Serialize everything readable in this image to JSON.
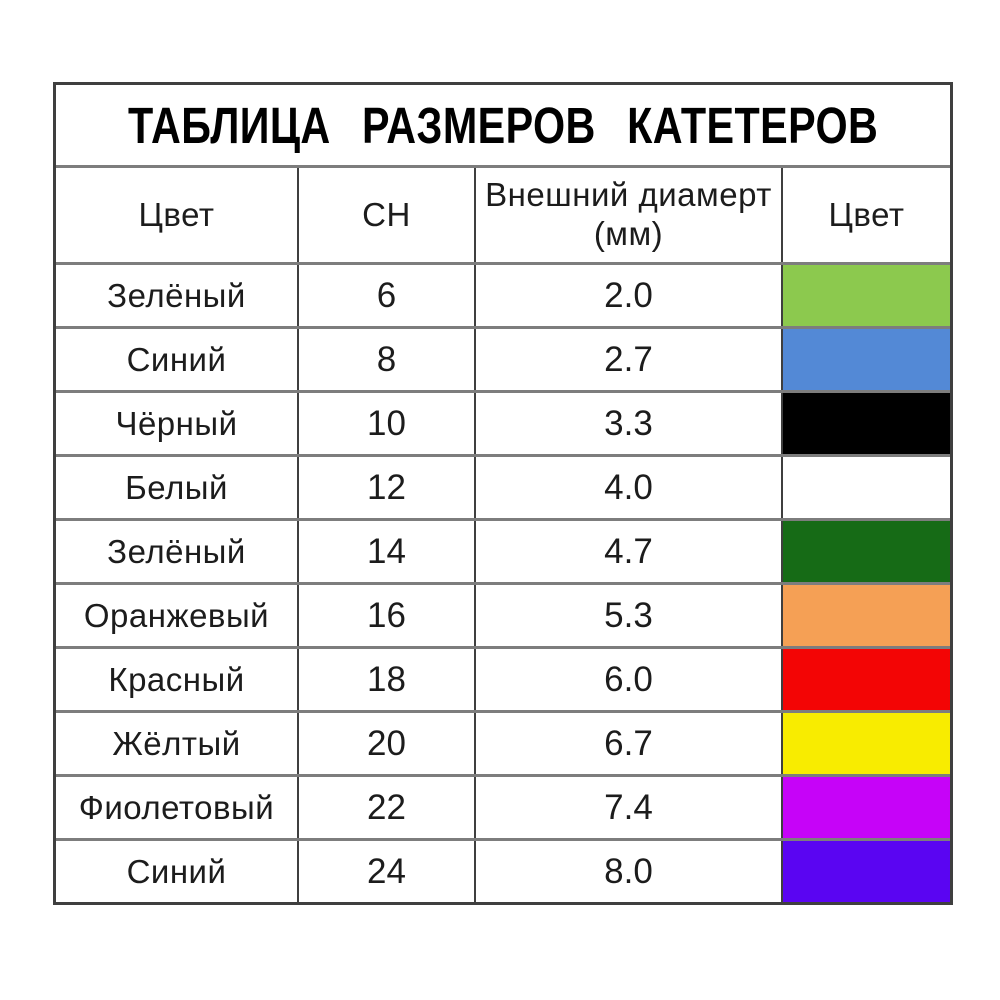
{
  "title": "ТАБЛИЦА РАЗМЕРОВ КАТЕТЕРОВ",
  "chart_data": {
    "type": "table",
    "title": "ТАБЛИЦА РАЗМЕРОВ КАТЕТЕРОВ",
    "columns": [
      "Цвет",
      "CH",
      "Внешний диамерт (мм)",
      "Цвет"
    ],
    "rows": [
      {
        "color_name": "Зелёный",
        "ch": "6",
        "outer_diameter_mm": "2.0",
        "swatch_name": "light-green-swatch",
        "swatch_hex": "#8CC94E"
      },
      {
        "color_name": "Синий",
        "ch": "8",
        "outer_diameter_mm": "2.7",
        "swatch_name": "blue-swatch",
        "swatch_hex": "#5389D6"
      },
      {
        "color_name": "Чёрный",
        "ch": "10",
        "outer_diameter_mm": "3.3",
        "swatch_name": "black-swatch",
        "swatch_hex": "#000000"
      },
      {
        "color_name": "Белый",
        "ch": "12",
        "outer_diameter_mm": "4.0",
        "swatch_name": "white-swatch",
        "swatch_hex": "#FFFFFF"
      },
      {
        "color_name": "Зелёный",
        "ch": "14",
        "outer_diameter_mm": "4.7",
        "swatch_name": "dark-green-swatch",
        "swatch_hex": "#166B16"
      },
      {
        "color_name": "Оранжевый",
        "ch": "16",
        "outer_diameter_mm": "5.3",
        "swatch_name": "orange-swatch",
        "swatch_hex": "#F5A055"
      },
      {
        "color_name": "Красный",
        "ch": "18",
        "outer_diameter_mm": "6.0",
        "swatch_name": "red-swatch",
        "swatch_hex": "#F30505"
      },
      {
        "color_name": "Жёлтый",
        "ch": "20",
        "outer_diameter_mm": "6.7",
        "swatch_name": "yellow-swatch",
        "swatch_hex": "#F8EC00"
      },
      {
        "color_name": "Фиолетовый",
        "ch": "22",
        "outer_diameter_mm": "7.4",
        "swatch_name": "magenta-swatch",
        "swatch_hex": "#C603F8"
      },
      {
        "color_name": "Синий",
        "ch": "24",
        "outer_diameter_mm": "8.0",
        "swatch_name": "blue-violet-swatch",
        "swatch_hex": "#5A05F2"
      }
    ]
  }
}
